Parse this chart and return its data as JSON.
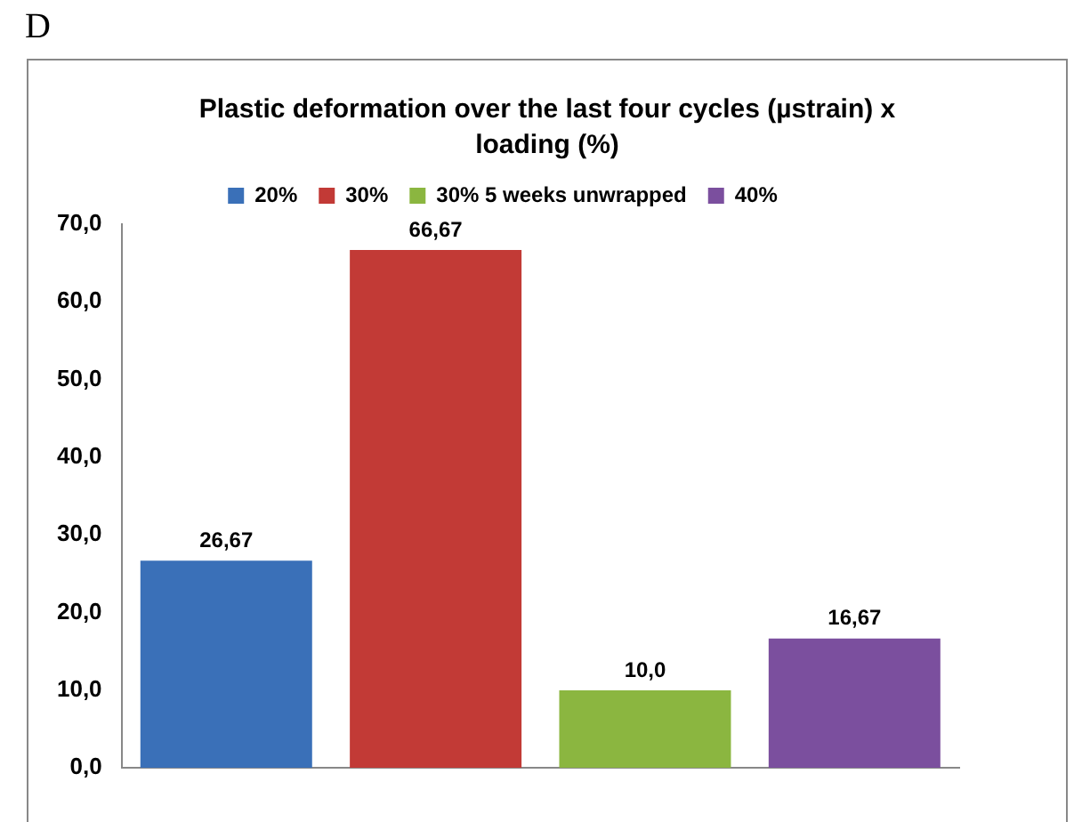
{
  "chart_data": {
    "type": "bar",
    "title": "Plastic deformation over the last four cycles (µstrain) x loading (%)",
    "annotations": [
      "D"
    ],
    "categories": [
      null,
      null,
      null,
      null
    ],
    "series": [
      {
        "name": "20%",
        "color": "#3a70b8",
        "values": [
          26.67,
          null,
          null,
          null
        ],
        "value_labels": [
          "26,67",
          null,
          null,
          null
        ]
      },
      {
        "name": "30%",
        "color": "#c23a36",
        "values": [
          null,
          66.67,
          null,
          null
        ],
        "value_labels": [
          null,
          "66,67",
          null,
          null
        ]
      },
      {
        "name": "30% 5 weeks unwrapped",
        "color": "#8bb640",
        "values": [
          null,
          null,
          10.0,
          null
        ],
        "value_labels": [
          null,
          null,
          "10,0",
          null
        ]
      },
      {
        "name": "40%",
        "color": "#7b4f9e",
        "values": [
          null,
          null,
          null,
          16.67
        ],
        "value_labels": [
          null,
          null,
          null,
          "16,67"
        ]
      }
    ],
    "ylim": [
      0,
      70
    ],
    "yticks": [
      {
        "value": 0,
        "label": "0,0"
      },
      {
        "value": 10,
        "label": "10,0"
      },
      {
        "value": 20,
        "label": "20,0"
      },
      {
        "value": 30,
        "label": "30,0"
      },
      {
        "value": 40,
        "label": "40,0"
      },
      {
        "value": 50,
        "label": "50,0"
      },
      {
        "value": 60,
        "label": "60,0"
      },
      {
        "value": 70,
        "label": "70,0"
      }
    ],
    "grid": false,
    "legend": "top"
  }
}
